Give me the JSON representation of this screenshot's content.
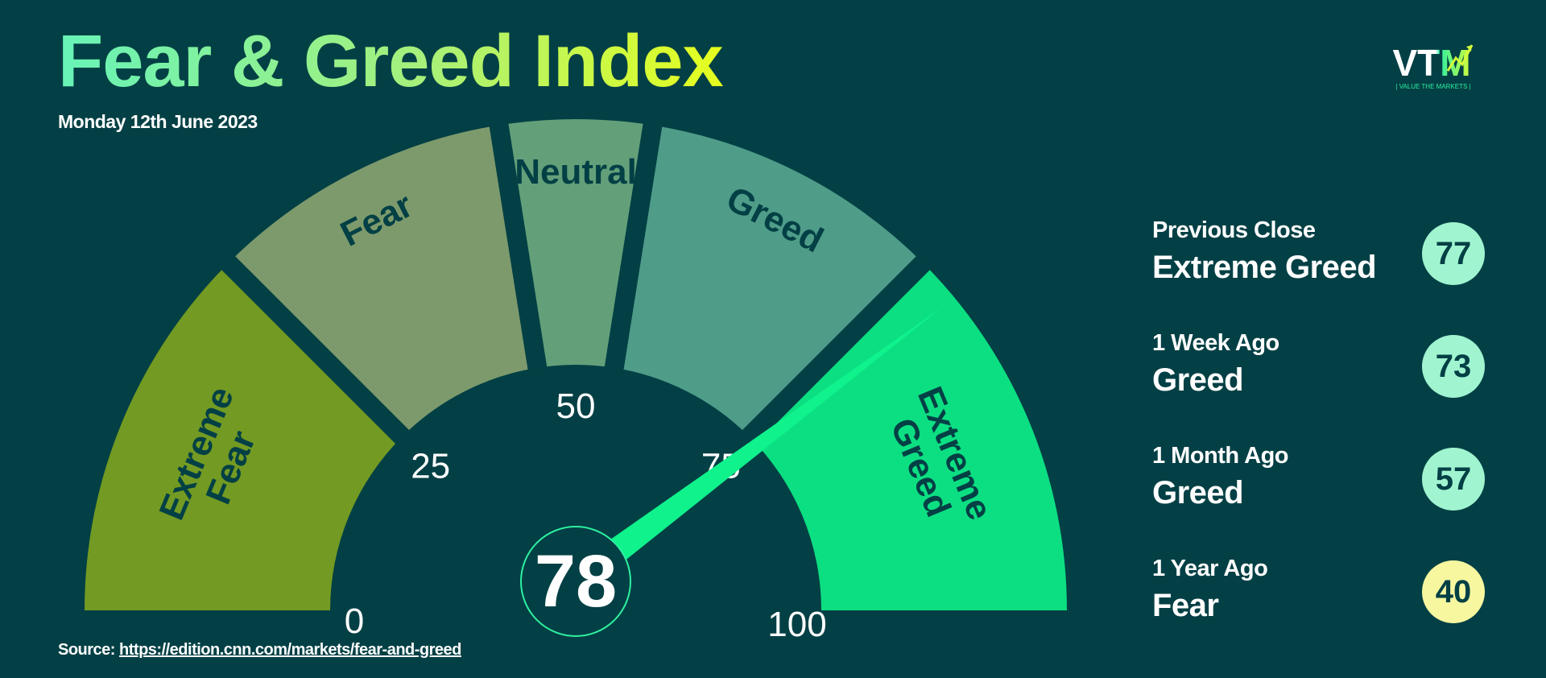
{
  "header": {
    "title": "Fear & Greed Index",
    "date": "Monday 12th June 2023"
  },
  "logo": {
    "letters": "VTM",
    "tagline": "| VALUE THE MARKETS |"
  },
  "chart_data": {
    "type": "gauge",
    "range": [
      0,
      100
    ],
    "value": 78,
    "tick_labels": [
      "0",
      "25",
      "50",
      "75",
      "100"
    ],
    "segments": [
      {
        "label": "Extreme Fear",
        "from": 0,
        "to": 25,
        "color": "#739a22"
      },
      {
        "label": "Fear",
        "from": 25,
        "to": 45,
        "color": "#7d9a6c"
      },
      {
        "label": "Neutral",
        "from": 45,
        "to": 55,
        "color": "#63a07a"
      },
      {
        "label": "Greed",
        "from": 55,
        "to": 75,
        "color": "#4f9c89"
      },
      {
        "label": "Extreme Greed",
        "from": 75,
        "to": 100,
        "color": "#0cdf82"
      }
    ],
    "needle_color": "#0ff28c"
  },
  "history": [
    {
      "label": "Previous Close",
      "sentiment": "Extreme Greed",
      "value": "77",
      "badge_color": "#a0f5d0"
    },
    {
      "label": "1 Week Ago",
      "sentiment": "Greed",
      "value": "73",
      "badge_color": "#a0f5d0"
    },
    {
      "label": "1 Month Ago",
      "sentiment": "Greed",
      "value": "57",
      "badge_color": "#a0f5d0"
    },
    {
      "label": "1 Year Ago",
      "sentiment": "Fear",
      "value": "40",
      "badge_color": "#f7f7a0"
    }
  ],
  "source": {
    "prefix": "Source: ",
    "link_text": "https://edition.cnn.com/markets/fear-and-greed"
  }
}
